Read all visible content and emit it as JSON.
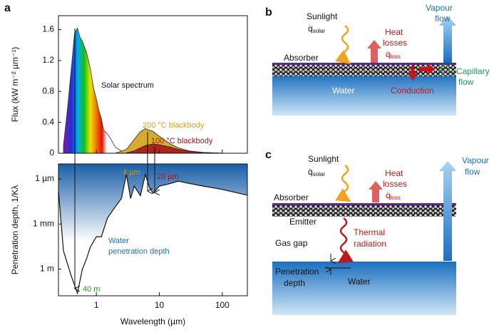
{
  "panel_labels": [
    "a",
    "b",
    "c"
  ],
  "chart_data": [
    {
      "type": "area",
      "ylabel": "Flux (kW m⁻² µm⁻¹)",
      "log_x": true,
      "xlim": [
        0.25,
        250
      ],
      "ylim": [
        0,
        1.78
      ],
      "yticks": [
        0,
        0.4,
        0.8,
        1.2,
        1.6
      ],
      "series": [
        {
          "name": "Solar spectrum",
          "color": "#333333",
          "x": [
            0.3,
            0.35,
            0.4,
            0.45,
            0.5,
            0.55,
            0.6,
            0.7,
            0.8,
            0.9,
            1.0,
            1.1,
            1.2,
            1.3,
            1.5,
            1.7,
            2.0,
            2.5
          ],
          "values": [
            0.1,
            0.6,
            1.1,
            1.55,
            1.62,
            1.5,
            1.45,
            1.3,
            1.1,
            0.85,
            0.7,
            0.55,
            0.45,
            0.3,
            0.25,
            0.18,
            0.08,
            0.03
          ]
        },
        {
          "name": "200 °C blackbody",
          "color": "#d4a219",
          "x": [
            2,
            3,
            4,
            5,
            6,
            8,
            10,
            15,
            20,
            30,
            50,
            100,
            200
          ],
          "values": [
            0.0,
            0.05,
            0.18,
            0.28,
            0.32,
            0.28,
            0.22,
            0.12,
            0.07,
            0.03,
            0.01,
            0.0,
            0.0
          ]
        },
        {
          "name": "100 °C blackbody",
          "color": "#a8141c",
          "x": [
            3,
            4,
            5,
            6,
            8,
            10,
            15,
            20,
            30,
            50,
            100,
            200
          ],
          "values": [
            0.005,
            0.03,
            0.07,
            0.1,
            0.12,
            0.11,
            0.08,
            0.05,
            0.025,
            0.01,
            0.002,
            0.0
          ]
        }
      ]
    },
    {
      "type": "line",
      "ylabel": "Penetration depth, 1/Kλ",
      "xlabel": "Wavelength (µm)",
      "log_x": true,
      "log_y": true,
      "xlim": [
        0.25,
        250
      ],
      "ylim": [
        60,
        1e-07
      ],
      "xticks": [
        1,
        10,
        100
      ],
      "yticks": [
        {
          "value": 1e-06,
          "label": "1 µm"
        },
        {
          "value": 0.001,
          "label": "1 mm"
        },
        {
          "value": 1,
          "label": "1 m"
        }
      ],
      "annotations": [
        "4 µm",
        "20 µm",
        "40 m",
        "Water",
        "penetration depth"
      ],
      "series": [
        {
          "name": "Water penetration depth",
          "color": "#111111",
          "x": [
            0.25,
            0.3,
            0.4,
            0.5,
            0.6,
            0.7,
            0.8,
            1.0,
            1.2,
            1.5,
            2.0,
            2.5,
            3.0,
            3.5,
            4.0,
            5.0,
            6.0,
            7.0,
            8.0,
            10,
            15,
            20,
            30,
            50,
            100,
            250
          ],
          "values": [
            6e-06,
            0.06,
            3,
            40,
            1,
            0.2,
            0.035,
            0.007,
            0.007,
            0.0004,
            7e-05,
            2e-05,
            5e-07,
            2e-05,
            3e-06,
            1.3e-05,
            5e-07,
            4e-06,
            9e-06,
            3e-06,
            2e-06,
            1.4e-06,
            2e-06,
            3e-06,
            5e-06,
            1.2e-05
          ]
        }
      ]
    }
  ],
  "diagram_b": {
    "sunlight": "Sunlight",
    "solar_symbol": "q̇",
    "solar_sub": "solar",
    "heat_losses": [
      "Heat",
      "losses"
    ],
    "loss_symbol": "q̇",
    "loss_sub": "loss",
    "vapour_flow": [
      "Vapour",
      "flow"
    ],
    "absorber": "Absorber",
    "water": "Water",
    "conduction": "Conduction",
    "capillary_flow": [
      "Capillary",
      "flow"
    ]
  },
  "diagram_c": {
    "sunlight": "Sunlight",
    "solar_symbol": "q̇",
    "solar_sub": "solar",
    "heat_losses": [
      "Heat",
      "losses"
    ],
    "loss_symbol": "q̇",
    "loss_sub": "loss",
    "vapour_flow": [
      "Vapour",
      "flow"
    ],
    "absorber": "Absorber",
    "emitter": "Emitter",
    "gas_gap": "Gas gap",
    "thermal_radiation": [
      "Thermal",
      "radiation"
    ],
    "penetration_depth": [
      "Penetration",
      "depth"
    ],
    "water": "Water"
  }
}
